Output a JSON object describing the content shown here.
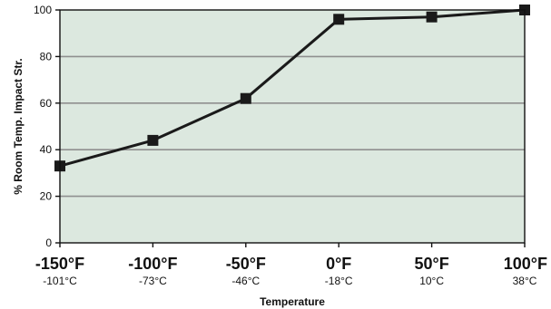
{
  "chart_data": {
    "type": "line",
    "title": "",
    "xlabel": "Temperature",
    "ylabel": "% Room Temp. Impact Str.",
    "categories": [
      "-150°F",
      "-100°F",
      "-50°F",
      "0°F",
      "50°F",
      "100°F"
    ],
    "category_sublabels": [
      "-101°C",
      "-73°C",
      "-46°C",
      "-18°C",
      "10°C",
      "38°C"
    ],
    "x": [
      -150,
      -100,
      -50,
      0,
      50,
      100
    ],
    "series": [
      {
        "values": [
          33,
          44,
          62,
          96,
          97,
          100
        ]
      }
    ],
    "ylim": [
      0,
      100
    ],
    "yticks": [
      "0",
      "20",
      "40",
      "60",
      "80",
      "100"
    ],
    "grid": true,
    "legend": "none",
    "colors": {
      "plot_background": "#dce8df",
      "grid": "#8f8f8f",
      "line": "#1a1a1a",
      "marker": "#1a1a1a",
      "axis": "#111111"
    }
  }
}
